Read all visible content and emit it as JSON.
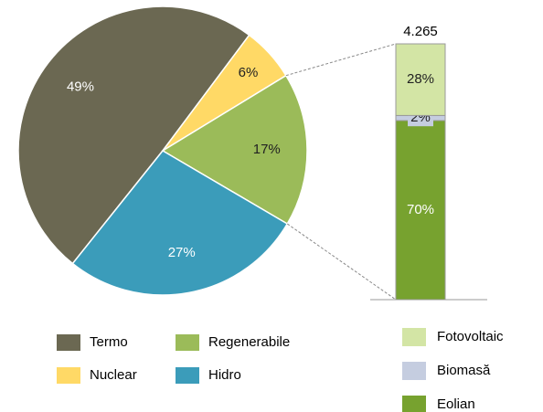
{
  "chart_data": [
    {
      "type": "pie",
      "categories": [
        "Termo",
        "Nuclear",
        "Regenerabile",
        "Hidro"
      ],
      "values": [
        49,
        6,
        17,
        27
      ],
      "value_labels": [
        "49%",
        "6%",
        "17%",
        "27%"
      ],
      "colors": [
        "#6b6852",
        "#ffd966",
        "#9bbb59",
        "#3b9cba"
      ]
    },
    {
      "type": "bar",
      "categories": [
        "Fotovoltaic",
        "Biomasă",
        "Eolian"
      ],
      "values": [
        28,
        2,
        70
      ],
      "value_labels": [
        "28%",
        "2%",
        "70%"
      ],
      "colors": [
        "#d3e5a5",
        "#c5cde0",
        "#77a22f"
      ],
      "total": {
        "value": 4265,
        "label": "4.265"
      }
    }
  ]
}
